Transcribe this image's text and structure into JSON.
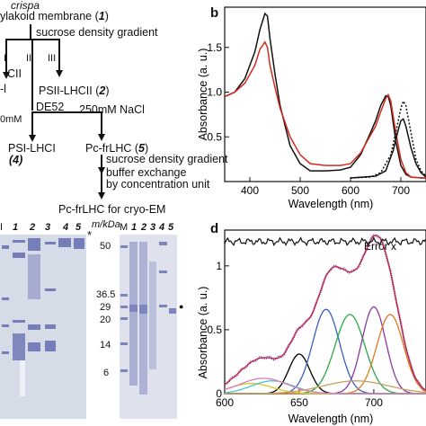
{
  "flowchart": {
    "organism": "crispa",
    "membrane": "ylakoid membrane (",
    "membrane_num": "1",
    "membrane_close": ")",
    "sucrose1": "sucrose density gradient",
    "lane_I": "I",
    "lane_II": "II",
    "lane_III": "III",
    "lhcii_partial": "CII",
    "h_partial": "-l",
    "psii_label": "PSII-LHCII (",
    "psii_num": "2",
    "close": ")",
    "de52": "DE52",
    "mm_partial": "0mM",
    "nacl": "250mM NaCl",
    "psi_label": "PSI-LHCI",
    "psi_num": "(4)",
    "pcfr_label": "Pc-frLHC (",
    "pcfr_num": "5",
    "sucrose2": "sucrose density gradient",
    "buffer1": "buffer exchange",
    "buffer2": "by concentration unit",
    "final": "Pc-frLHC for cryo-EM"
  },
  "gel": {
    "left_lanes": [
      "1",
      "2",
      "3",
      "4",
      "5"
    ],
    "left_m": "I",
    "mkda": "m/kDa",
    "markers": [
      "50",
      "36.5",
      "29",
      "20",
      "14",
      "6"
    ],
    "asterisk": "*",
    "right_m": "M",
    "right_lanes": [
      "1",
      "2",
      "3",
      "4",
      "5"
    ],
    "dot": "●"
  },
  "panel_b": {
    "letter": "b",
    "ylabel": "Absorbance (a. u.)",
    "xlabel": "Wavelength (nm)",
    "chart_data": {
      "type": "line",
      "xlim": [
        350,
        750
      ],
      "ylim": [
        0,
        1.95
      ],
      "xticks": [
        "400",
        "500",
        "600",
        "700"
      ],
      "yticks": [
        "0.5",
        "1.0",
        "1.5"
      ],
      "series": [
        {
          "color": "#111111",
          "style": "solid",
          "x": [
            350,
            370,
            390,
            410,
            420,
            430,
            435,
            440,
            450,
            460,
            480,
            500,
            520,
            550,
            580,
            600,
            620,
            640,
            650,
            660,
            670,
            675,
            680,
            690,
            700,
            710,
            720,
            740,
            750
          ],
          "y": [
            0.95,
            1.0,
            1.15,
            1.45,
            1.7,
            1.88,
            1.85,
            1.6,
            1.2,
            0.85,
            0.4,
            0.2,
            0.12,
            0.12,
            0.13,
            0.16,
            0.3,
            0.55,
            0.68,
            0.85,
            0.96,
            0.95,
            0.85,
            0.45,
            0.18,
            0.08,
            0.05,
            0.04,
            0.04
          ]
        },
        {
          "color": "#d42a1f",
          "style": "solid",
          "x": [
            350,
            370,
            390,
            410,
            420,
            430,
            435,
            440,
            450,
            460,
            480,
            500,
            520,
            550,
            580,
            600,
            620,
            640,
            650,
            660,
            670,
            675,
            680,
            690,
            700,
            710,
            720,
            740,
            750
          ],
          "y": [
            0.95,
            1.0,
            1.1,
            1.3,
            1.48,
            1.56,
            1.5,
            1.3,
            1.05,
            0.82,
            0.5,
            0.3,
            0.2,
            0.18,
            0.18,
            0.2,
            0.32,
            0.52,
            0.62,
            0.78,
            0.93,
            0.97,
            0.9,
            0.55,
            0.25,
            0.1,
            0.05,
            0.04,
            0.04
          ]
        },
        {
          "color": "#111111",
          "style": "dotted",
          "x": [
            600,
            640,
            660,
            680,
            690,
            700,
            705,
            710,
            720,
            730,
            740,
            750
          ],
          "y": [
            0.04,
            0.05,
            0.1,
            0.3,
            0.55,
            0.82,
            0.9,
            0.85,
            0.55,
            0.25,
            0.12,
            0.06
          ]
        },
        {
          "color": "#111111",
          "style": "solid",
          "x": [
            600,
            650,
            670,
            685,
            695,
            700,
            705,
            710,
            720,
            730,
            740,
            750
          ],
          "y": [
            0.04,
            0.06,
            0.12,
            0.35,
            0.58,
            0.68,
            0.7,
            0.62,
            0.38,
            0.2,
            0.1,
            0.05
          ]
        }
      ]
    }
  },
  "panel_d": {
    "letter": "d",
    "ylabel": "Absorbance (a. u.)",
    "xlabel": "Wavelength (nm)",
    "error_label": "Error x",
    "chart_data": {
      "type": "line",
      "xlim": [
        600,
        735
      ],
      "ylim": [
        0,
        1.28
      ],
      "xticks": [
        "600",
        "650",
        "700"
      ],
      "yticks": [
        "0",
        "0.5",
        "1"
      ],
      "error_level": 1.19,
      "gaussians": [
        {
          "color": "#000000",
          "center": 650,
          "width": 7,
          "height": 0.31
        },
        {
          "color": "#3b5fc0",
          "center": 668,
          "width": 9,
          "height": 0.66
        },
        {
          "color": "#2aa84a",
          "center": 684,
          "width": 10,
          "height": 0.62
        },
        {
          "color": "#8a3aa0",
          "center": 700,
          "width": 8,
          "height": 0.68
        },
        {
          "color": "#e07a20",
          "center": 711,
          "width": 9,
          "height": 0.62
        },
        {
          "color": "#d6c828",
          "center": 618,
          "width": 14,
          "height": 0.08
        },
        {
          "color": "#4ac4d0",
          "center": 632,
          "width": 14,
          "height": 0.1
        },
        {
          "color": "#e07ab8",
          "center": 626,
          "width": 16,
          "height": 0.12
        },
        {
          "color": "#c8a060",
          "center": 688,
          "width": 22,
          "height": 0.1
        }
      ],
      "envelope_color": "#c01f3a",
      "data_color": "#7a3aa8"
    }
  }
}
